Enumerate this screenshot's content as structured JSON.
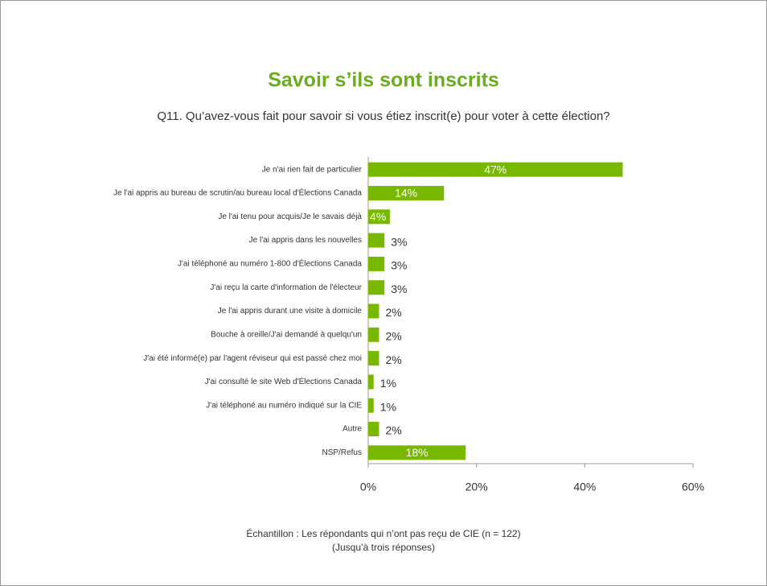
{
  "chart_data": {
    "type": "bar",
    "orientation": "horizontal",
    "title": "Savoir s’ils sont inscrits",
    "subtitle": "Q11. Qu’avez-vous fait pour savoir si vous étiez inscrit(e) pour voter à cette élection?",
    "categories": [
      "Je n'ai rien fait de particulier",
      "Je l'ai appris au bureau de scrutin/au bureau local d'Élections Canada",
      "Je l'ai tenu pour acquis/Je le savais déjà",
      "Je l'ai appris dans les nouvelles",
      "J'ai téléphoné au numéro 1-800 d'Élections Canada",
      "J'ai reçu la carte d'information de l'électeur",
      "Je l'ai appris durant une visite à domicile",
      "Bouche à oreille/J'ai demandé à quelqu'un",
      "J'ai été informé(e) par l'agent réviseur qui est passé chez moi",
      "J'ai consulté le site Web d'Élections Canada",
      "J'ai téléphoné au numéro indiqué sur la CIE",
      "Autre",
      "NSP/Refus"
    ],
    "values": [
      47,
      14,
      4,
      3,
      3,
      3,
      2,
      2,
      2,
      1,
      1,
      2,
      18
    ],
    "value_labels": [
      "47%",
      "14%",
      "4%",
      "3%",
      "3%",
      "3%",
      "2%",
      "2%",
      "2%",
      "1%",
      "1%",
      "2%",
      "18%"
    ],
    "color": "#78b800",
    "xlim": [
      0,
      60
    ],
    "xticks": [
      {
        "value": 0,
        "label": "0%"
      },
      {
        "value": 20,
        "label": "20%"
      },
      {
        "value": 40,
        "label": "40%"
      },
      {
        "value": 60,
        "label": "60%"
      }
    ],
    "notes": [
      "Échantillon : Les répondants qui n’ont pas reçu de CIE (n = 122)",
      "(Jusqu’à trois réponses)"
    ]
  }
}
